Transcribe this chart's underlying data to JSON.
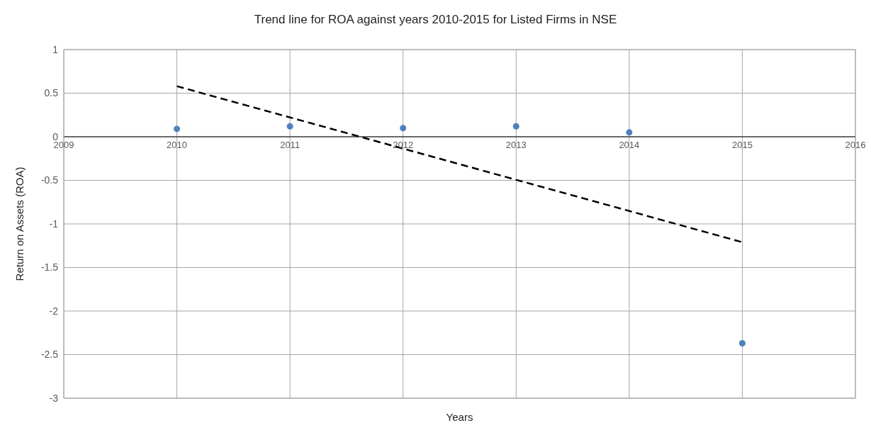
{
  "chart_data": {
    "type": "scatter",
    "title": "Trend line for ROA against years 2010-2015 for Listed Firms in NSE",
    "xlabel": "Years",
    "ylabel": "Return on Assets (ROA)",
    "x": [
      2010,
      2011,
      2012,
      2013,
      2014,
      2015
    ],
    "series": [
      {
        "color": "#4f81bd",
        "values": [
          0.09,
          0.12,
          0.1,
          0.12,
          0.05,
          -2.37
        ],
        "marker": "circle"
      },
      {
        "type": "line",
        "color": "#000000",
        "x": [
          2010,
          2015
        ],
        "values": [
          0.58,
          -1.21
        ],
        "line_style": "dashed",
        "marker": "none"
      }
    ],
    "xlim": [
      2009,
      2016
    ],
    "xticks": [
      2009,
      2010,
      2011,
      2012,
      2013,
      2014,
      2015,
      2016
    ],
    "ylim": [
      -3,
      1
    ],
    "yticks": [
      -3,
      -2.5,
      -2,
      -1.5,
      -1,
      -0.5,
      0,
      0.5,
      1
    ],
    "grid": true,
    "legend": false
  }
}
